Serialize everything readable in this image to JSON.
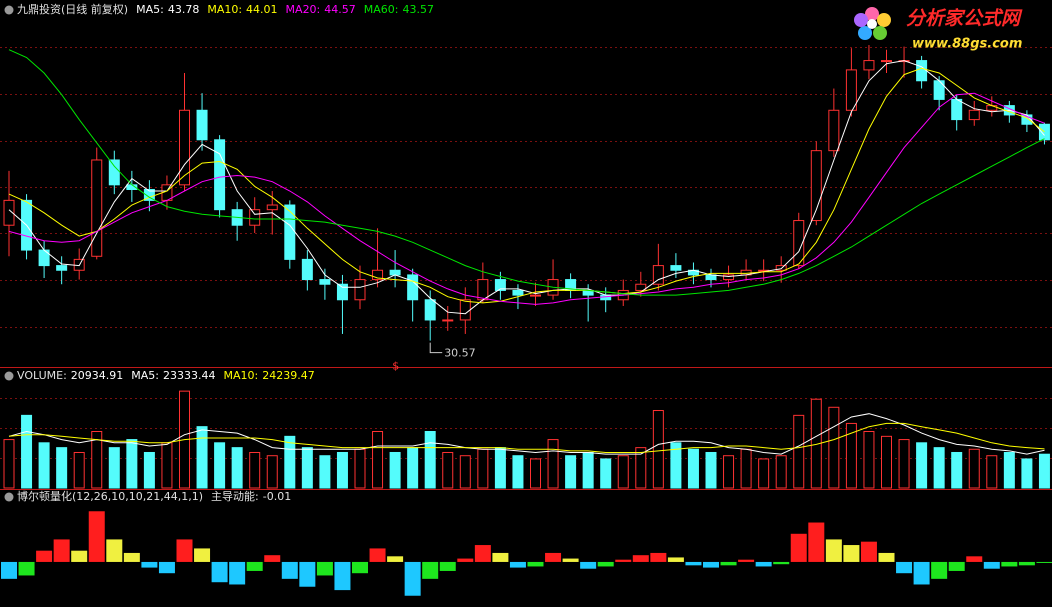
{
  "chart_data": [
    {
      "type": "candlestick",
      "title": "九鼎投资(日线 前复权)",
      "up_color": "#ff3232",
      "down_color": "#54fcfc",
      "ylim": [
        29,
        52.5
      ],
      "grid": true,
      "marker_text": "$",
      "open": [
        38.0,
        39.6,
        36.4,
        35.4,
        35.1,
        36.0,
        42.2,
        40.6,
        40.3,
        39.6,
        40.6,
        45.4,
        43.5,
        39.0,
        38.0,
        39.0,
        39.3,
        35.8,
        34.5,
        34.2,
        33.2,
        34.5,
        35.1,
        34.8,
        33.2,
        31.9,
        31.9,
        33.2,
        34.5,
        33.8,
        33.5,
        33.5,
        34.5,
        33.8,
        33.5,
        33.2,
        33.8,
        34.2,
        35.4,
        35.1,
        34.8,
        34.5,
        34.8,
        35.1,
        35.1,
        35.4,
        38.3,
        42.8,
        45.4,
        48.0,
        48.6,
        48.6,
        48.6,
        47.3,
        46.1,
        44.8,
        45.4,
        45.7,
        45.1,
        44.5
      ],
      "high": [
        41.5,
        40.0,
        37.0,
        36.0,
        36.5,
        43.0,
        42.8,
        41.5,
        40.9,
        41.2,
        47.8,
        46.5,
        43.8,
        39.5,
        39.8,
        40.2,
        39.6,
        36.4,
        35.2,
        34.8,
        35.4,
        37.8,
        36.4,
        35.2,
        33.8,
        32.8,
        34.0,
        35.6,
        35.0,
        34.2,
        34.3,
        35.8,
        34.9,
        34.2,
        34.0,
        34.5,
        35.0,
        36.8,
        36.2,
        35.6,
        35.2,
        35.4,
        35.8,
        35.8,
        36.0,
        38.8,
        43.4,
        46.8,
        49.4,
        49.6,
        49.3,
        49.5,
        48.9,
        47.6,
        46.4,
        46.0,
        46.3,
        46.0,
        45.4,
        44.6
      ],
      "low": [
        36.0,
        35.8,
        34.6,
        34.2,
        34.5,
        35.8,
        40.0,
        39.5,
        38.9,
        39.0,
        40.2,
        42.8,
        38.5,
        37.0,
        37.5,
        37.4,
        35.2,
        33.8,
        33.2,
        31.0,
        32.6,
        34.0,
        34.0,
        31.8,
        30.57,
        31.2,
        31.0,
        33.0,
        33.2,
        32.6,
        32.8,
        33.2,
        33.3,
        31.8,
        32.4,
        32.8,
        33.4,
        33.8,
        34.6,
        34.2,
        34.0,
        34.0,
        34.5,
        34.4,
        34.3,
        35.2,
        38.0,
        42.4,
        45.0,
        47.4,
        47.8,
        47.5,
        46.8,
        45.4,
        44.1,
        44.4,
        45.0,
        44.6,
        44.0,
        43.2
      ],
      "close": [
        39.6,
        36.4,
        35.4,
        35.1,
        35.8,
        42.2,
        40.6,
        40.3,
        39.6,
        40.6,
        45.4,
        43.5,
        39.0,
        38.0,
        39.0,
        39.3,
        35.8,
        34.5,
        34.2,
        33.2,
        34.5,
        35.1,
        34.8,
        33.2,
        31.9,
        31.9,
        33.2,
        34.5,
        33.8,
        33.5,
        33.5,
        34.5,
        33.8,
        33.5,
        33.2,
        33.8,
        34.2,
        35.4,
        35.1,
        34.8,
        34.5,
        34.8,
        35.1,
        35.1,
        35.4,
        38.3,
        42.8,
        45.4,
        48.0,
        48.6,
        48.6,
        48.6,
        47.3,
        46.1,
        44.8,
        45.4,
        45.7,
        45.1,
        44.5,
        43.5
      ],
      "series": [
        {
          "name": "MA5:",
          "color": "#ffffff",
          "values": [
            39.0,
            38.0,
            36.4,
            35.5,
            35.4,
            37.5,
            39.5,
            41.0,
            40.2,
            40.2,
            41.9,
            43.2,
            42.6,
            40.2,
            38.7,
            38.8,
            38.0,
            36.5,
            34.8,
            34.0,
            34.0,
            34.3,
            34.8,
            34.4,
            33.3,
            32.4,
            32.3,
            33.2,
            33.9,
            33.9,
            33.6,
            33.8,
            33.9,
            33.9,
            33.5,
            33.5,
            33.7,
            34.5,
            34.9,
            35.1,
            34.8,
            34.7,
            34.8,
            35.0,
            35.2,
            36.3,
            39.0,
            42.2,
            45.3,
            47.3,
            48.4,
            48.6,
            48.2,
            47.3,
            46.1,
            45.5,
            45.3,
            45.4,
            45.1,
            43.78
          ]
        },
        {
          "name": "MA10:",
          "color": "#ffff00",
          "values": [
            40.0,
            39.5,
            38.8,
            38.0,
            37.3,
            37.6,
            38.4,
            39.3,
            39.8,
            40.2,
            41.2,
            42.0,
            42.1,
            41.6,
            40.5,
            39.8,
            38.9,
            37.8,
            36.8,
            35.8,
            35.0,
            34.6,
            34.5,
            34.4,
            34.0,
            33.4,
            33.1,
            33.0,
            33.1,
            33.4,
            33.7,
            33.8,
            33.8,
            33.8,
            33.7,
            33.6,
            33.7,
            34.0,
            34.4,
            34.7,
            34.9,
            34.9,
            34.9,
            35.0,
            35.0,
            35.5,
            36.9,
            39.0,
            41.6,
            44.2,
            46.3,
            47.7,
            48.1,
            47.8,
            47.0,
            46.2,
            45.7,
            45.3,
            44.9,
            44.01
          ]
        },
        {
          "name": "MA20:",
          "color": "#ff00ff",
          "values": [
            37.6,
            37.3,
            37.0,
            36.9,
            37.0,
            37.6,
            38.2,
            38.8,
            39.2,
            39.6,
            40.2,
            40.8,
            41.1,
            41.2,
            41.1,
            40.8,
            40.2,
            39.5,
            38.6,
            37.8,
            37.0,
            36.3,
            35.6,
            35.0,
            34.4,
            33.9,
            33.5,
            33.3,
            33.1,
            33.0,
            32.9,
            33.0,
            33.2,
            33.3,
            33.4,
            33.5,
            33.6,
            33.7,
            33.9,
            34.0,
            34.2,
            34.3,
            34.5,
            34.6,
            34.8,
            35.2,
            35.9,
            36.9,
            38.2,
            39.8,
            41.4,
            43.0,
            44.3,
            45.6,
            46.4,
            46.5,
            46.0,
            45.5,
            45.0,
            44.57
          ]
        },
        {
          "name": "MA60:",
          "color": "#00e600",
          "values": [
            49.3,
            48.8,
            47.8,
            46.4,
            44.8,
            43.3,
            41.8,
            40.6,
            39.8,
            39.2,
            38.9,
            38.7,
            38.6,
            38.5,
            38.4,
            38.4,
            38.4,
            38.3,
            38.2,
            38.0,
            37.8,
            37.6,
            37.3,
            36.9,
            36.4,
            35.9,
            35.4,
            35.0,
            34.7,
            34.4,
            34.2,
            34.0,
            33.9,
            33.8,
            33.7,
            33.6,
            33.5,
            33.5,
            33.5,
            33.6,
            33.7,
            33.8,
            34.0,
            34.2,
            34.5,
            34.9,
            35.4,
            36.0,
            36.6,
            37.3,
            38.0,
            38.7,
            39.4,
            40.0,
            40.6,
            41.2,
            41.8,
            42.4,
            43.0,
            43.57
          ]
        }
      ]
    },
    {
      "type": "volume",
      "title": "VOLUME:",
      "color": "#ffffff",
      "ylim": [
        0,
        70000
      ],
      "grid": true,
      "values": [
        30000,
        45000,
        28000,
        25000,
        22000,
        35000,
        25000,
        30000,
        22000,
        28000,
        60000,
        38000,
        28000,
        25000,
        22000,
        20000,
        32000,
        25000,
        20000,
        22000,
        24000,
        35000,
        22000,
        25000,
        35000,
        22000,
        20000,
        24000,
        25000,
        20000,
        18000,
        30000,
        20000,
        22000,
        18000,
        20000,
        25000,
        48000,
        28000,
        24000,
        22000,
        20000,
        24000,
        18000,
        20000,
        45000,
        55000,
        50000,
        40000,
        35000,
        32000,
        30000,
        28000,
        25000,
        22000,
        24000,
        20000,
        22000,
        18000,
        20934.91
      ],
      "series": [
        {
          "name": "MA5:",
          "color": "#ffffff",
          "values": [
            32000,
            35000,
            33000,
            30000,
            28000,
            30000,
            28000,
            28000,
            26000,
            27000,
            33000,
            36000,
            35000,
            34000,
            30000,
            25000,
            24000,
            24000,
            24000,
            24000,
            24000,
            26000,
            26000,
            26000,
            28000,
            27000,
            25000,
            24000,
            24000,
            23000,
            22000,
            23000,
            22000,
            22000,
            21000,
            21000,
            21000,
            27000,
            29000,
            29000,
            28000,
            25000,
            24000,
            22000,
            21000,
            26000,
            32000,
            38000,
            44000,
            46000,
            43000,
            39000,
            34000,
            30000,
            27000,
            26000,
            24000,
            23000,
            21000,
            23333.44
          ]
        },
        {
          "name": "MA10:",
          "color": "#ffff00",
          "values": [
            32000,
            33000,
            33000,
            32000,
            31000,
            30000,
            29000,
            29000,
            28000,
            28000,
            30000,
            31000,
            31000,
            31000,
            31000,
            30000,
            28000,
            27000,
            26000,
            25000,
            25000,
            25000,
            25000,
            25000,
            25000,
            25000,
            25000,
            25000,
            25000,
            24000,
            24000,
            24000,
            23000,
            23000,
            22000,
            22000,
            22000,
            23000,
            24000,
            25000,
            25000,
            26000,
            26000,
            25000,
            24000,
            25000,
            27000,
            30000,
            34000,
            38000,
            40000,
            40000,
            38000,
            36000,
            34000,
            31000,
            28000,
            26000,
            25000,
            24239.47
          ]
        }
      ]
    },
    {
      "type": "momentum",
      "title": "博尔顿量化(12,26,10,10,21,44,1,1)",
      "name": "主导动能:",
      "ylim": [
        -4,
        5.5
      ],
      "colors": {
        "positive_rising": "#ff1e1e",
        "positive_falling": "#f0f040",
        "negative_falling": "#1ec8ff",
        "negative_rising": "#1ee61e"
      },
      "values": [
        -1.5,
        -1.2,
        1.0,
        2.0,
        1.0,
        4.5,
        2.0,
        0.8,
        -0.5,
        -1.0,
        2.0,
        1.2,
        -1.8,
        -2.0,
        -0.8,
        0.6,
        -1.5,
        -2.2,
        -1.2,
        -2.5,
        -1.0,
        1.2,
        0.5,
        -3.0,
        -1.5,
        -0.8,
        0.3,
        1.5,
        0.8,
        -0.5,
        -0.4,
        0.8,
        0.3,
        -0.6,
        -0.4,
        0.2,
        0.6,
        0.8,
        0.4,
        -0.3,
        -0.5,
        -0.3,
        0.2,
        -0.4,
        -0.2,
        2.5,
        3.5,
        2.0,
        1.5,
        1.8,
        0.8,
        -1.0,
        -2.0,
        -1.5,
        -0.8,
        0.5,
        -0.6,
        -0.4,
        -0.3,
        -0.01
      ]
    }
  ],
  "watermark": {
    "title": "分析家公式网",
    "url": "www.88gs.com"
  }
}
